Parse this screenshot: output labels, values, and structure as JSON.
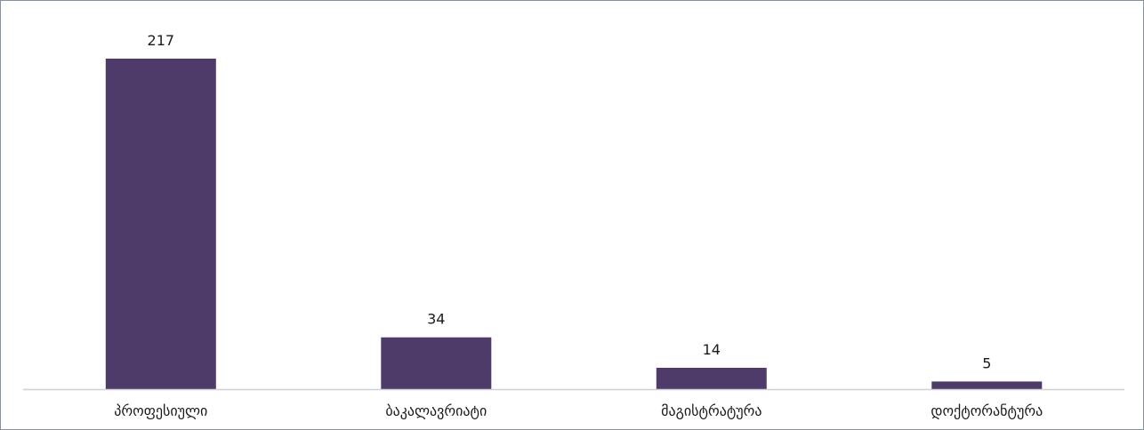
{
  "chart_data": {
    "type": "bar",
    "categories": [
      "პროფესიული",
      "ბაკალავრიატი",
      "მაგისტრატურა",
      "დოქტორანტურა"
    ],
    "values": [
      217,
      34,
      14,
      5
    ],
    "title": "",
    "xlabel": "",
    "ylabel": "",
    "ylim": [
      0,
      217
    ],
    "grid": false,
    "legend": "none",
    "data_labels": true,
    "colors": {
      "bar": "#4e3b69",
      "axis": "#d0d0d0",
      "frame": "#8a9099"
    }
  }
}
